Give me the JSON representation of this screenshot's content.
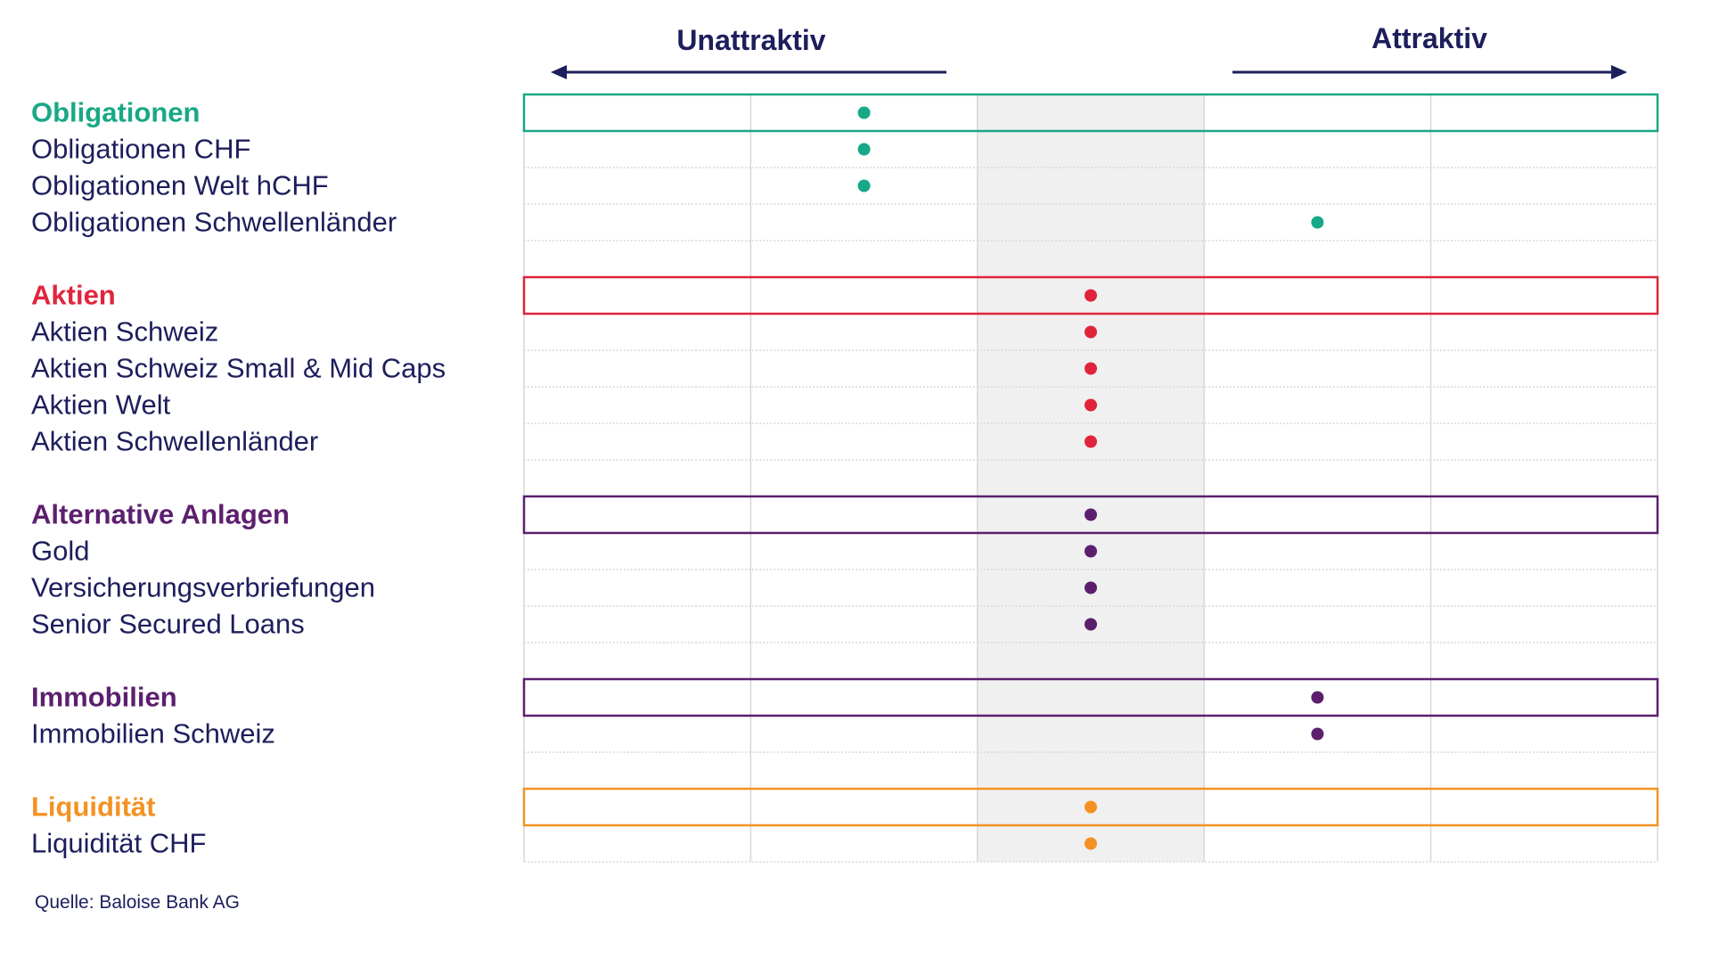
{
  "header": {
    "left_label": "Unattraktiv",
    "right_label": "Attraktiv"
  },
  "source_note": "Quelle: Baloise Bank AG",
  "chart_data": {
    "type": "scatter",
    "title": "",
    "x_categories": 5,
    "neutral_column": 3,
    "scale_note": "x = attractiveness column 1 (left) to 5 (right); arrows label left as Unattraktiv and right as Attraktiv",
    "groups": [
      {
        "label": "Obligationen",
        "color": "#19a887",
        "value": 2,
        "items": [
          {
            "label": "Obligationen CHF",
            "value": 2
          },
          {
            "label": "Obligationen Welt hCHF",
            "value": 2
          },
          {
            "label": "Obligationen Schwellenländer",
            "value": 4
          }
        ]
      },
      {
        "label": "Aktien",
        "color": "#e0243c",
        "value": 3,
        "items": [
          {
            "label": "Aktien Schweiz",
            "value": 3
          },
          {
            "label": "Aktien Schweiz Small & Mid Caps",
            "value": 3
          },
          {
            "label": "Aktien Welt",
            "value": 3
          },
          {
            "label": "Aktien Schwellenländer",
            "value": 3
          }
        ]
      },
      {
        "label": "Alternative Anlagen",
        "color": "#5c1f6e",
        "value": 3,
        "items": [
          {
            "label": "Gold",
            "value": 3
          },
          {
            "label": "Versicherungsverbriefungen",
            "value": 3
          },
          {
            "label": "Senior Secured Loans",
            "value": 3
          }
        ]
      },
      {
        "label": "Immobilien",
        "color": "#5c1f6e",
        "value": 4,
        "items": [
          {
            "label": "Immobilien Schweiz",
            "value": 4
          }
        ]
      },
      {
        "label": "Liquidität",
        "color": "#f39223",
        "value": 3,
        "items": [
          {
            "label": "Liquidität CHF",
            "value": 3
          }
        ]
      }
    ],
    "colors": {
      "text": "#1d1e5c",
      "grid": "#d8d8d8",
      "neutral_band": "#f0f0f0",
      "arrow": "#1d1e5c"
    }
  }
}
